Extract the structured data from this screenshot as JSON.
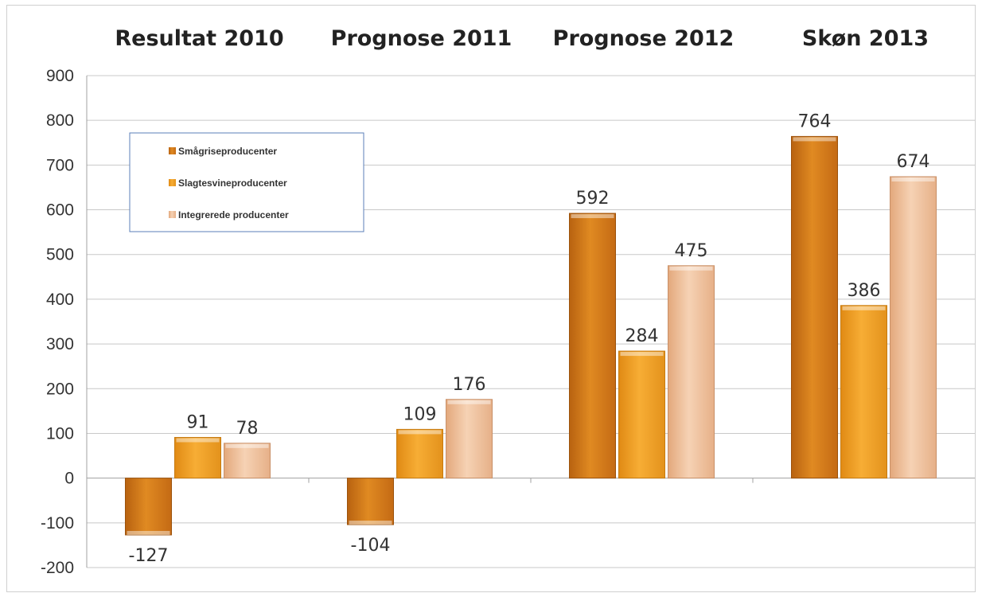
{
  "chart_data": {
    "type": "bar",
    "categories": [
      "Resultat 2010",
      "Prognose 2011",
      "Prognose 2012",
      "Skøn 2013"
    ],
    "series": [
      {
        "name": "Smågriseproducenter",
        "values": [
          -127,
          -104,
          592,
          764
        ],
        "color": "#d9801a"
      },
      {
        "name": "Slagtesvineproducenter",
        "values": [
          91,
          109,
          284,
          386
        ],
        "color": "#f0a229"
      },
      {
        "name": "Integrerede producenter",
        "values": [
          78,
          176,
          475,
          674
        ],
        "color": "#ecbf9a"
      }
    ],
    "data_labels": [
      [
        "-127",
        "-104",
        "592",
        "764"
      ],
      [
        "91",
        "109",
        "284",
        "386"
      ],
      [
        "78",
        "176",
        "475",
        "674"
      ]
    ],
    "ylim": [
      -200,
      900
    ],
    "yticks": [
      900,
      800,
      700,
      600,
      500,
      400,
      300,
      200,
      100,
      0,
      -100,
      -200
    ],
    "grid": true,
    "legend_position": "top-left",
    "xlabel": "",
    "ylabel": ""
  }
}
